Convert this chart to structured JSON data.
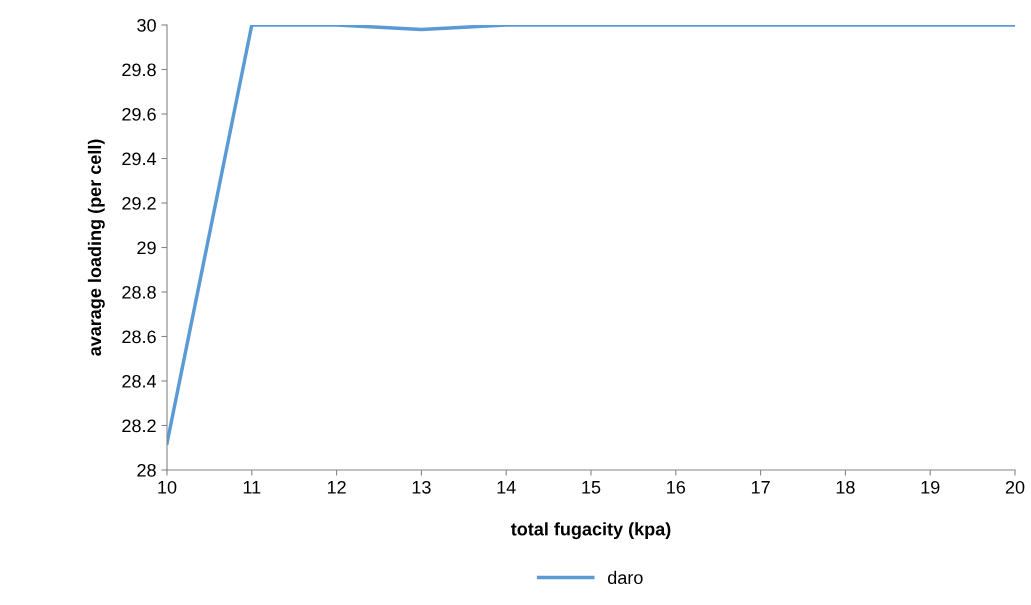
{
  "chart_data": {
    "type": "line",
    "xlabel": "total fugacity (kpa)",
    "ylabel": "avarage loading (per cell)",
    "x": [
      10,
      11,
      12,
      13,
      14,
      15,
      16,
      17,
      18,
      19,
      20
    ],
    "series": [
      {
        "name": "daro",
        "color": "#5b9bd5",
        "values": [
          28.12,
          30,
          30,
          29.98,
          30,
          30,
          30,
          30,
          30,
          30,
          30
        ]
      }
    ],
    "xlim": [
      10,
      20
    ],
    "xticks": [
      10,
      11,
      12,
      13,
      14,
      15,
      16,
      17,
      18,
      19,
      20
    ],
    "ylim": [
      28,
      30
    ],
    "yticks": [
      {
        "value": 28,
        "label": "28"
      },
      {
        "value": 28.2,
        "label": "28.2"
      },
      {
        "value": 28.4,
        "label": "28.4"
      },
      {
        "value": 28.6,
        "label": "28.6"
      },
      {
        "value": 28.8,
        "label": "28.8"
      },
      {
        "value": 29,
        "label": "29"
      },
      {
        "value": 29.2,
        "label": "29.2"
      },
      {
        "value": 29.4,
        "label": "29.4"
      },
      {
        "value": 29.6,
        "label": "29.6"
      },
      {
        "value": 29.8,
        "label": "29.8"
      },
      {
        "value": 30,
        "label": "30"
      }
    ],
    "grid": false,
    "legend": "bottom",
    "marker": "none",
    "line_style": "solid"
  }
}
